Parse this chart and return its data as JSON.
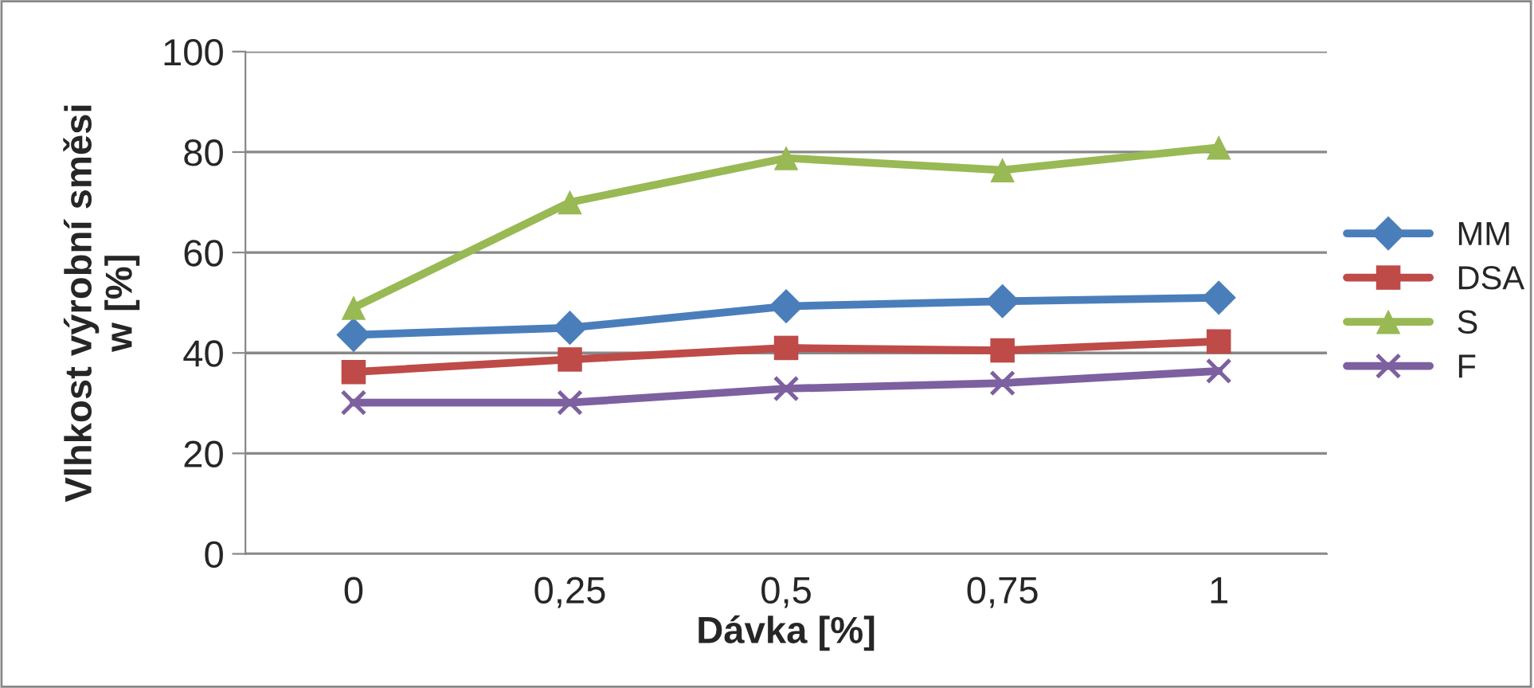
{
  "chart_data": {
    "type": "line",
    "xlabel": "Dávka [%]",
    "ylabel": "Vlhkost výrobní směsi\nw [%]",
    "categories": [
      "0",
      "0,25",
      "0,5",
      "0,75",
      "1"
    ],
    "ylim": [
      0,
      100
    ],
    "yticks": [
      0,
      20,
      40,
      60,
      80,
      100
    ],
    "grid": "y",
    "legend": "right",
    "series": [
      {
        "name": "MM",
        "color": "#4a7ebb",
        "marker": "diamond",
        "values": [
          43.6,
          45,
          49.3,
          50.3,
          51
        ]
      },
      {
        "name": "DSA",
        "color": "#be4b48",
        "marker": "square",
        "values": [
          36.2,
          38.7,
          41,
          40.5,
          42.3
        ]
      },
      {
        "name": "S",
        "color": "#98b954",
        "marker": "triangle",
        "values": [
          49,
          70,
          78.8,
          76.4,
          80.9
        ]
      },
      {
        "name": "F",
        "color": "#7d60a0",
        "marker": "cross",
        "values": [
          30.1,
          30.1,
          32.9,
          34,
          36.4
        ]
      }
    ]
  }
}
